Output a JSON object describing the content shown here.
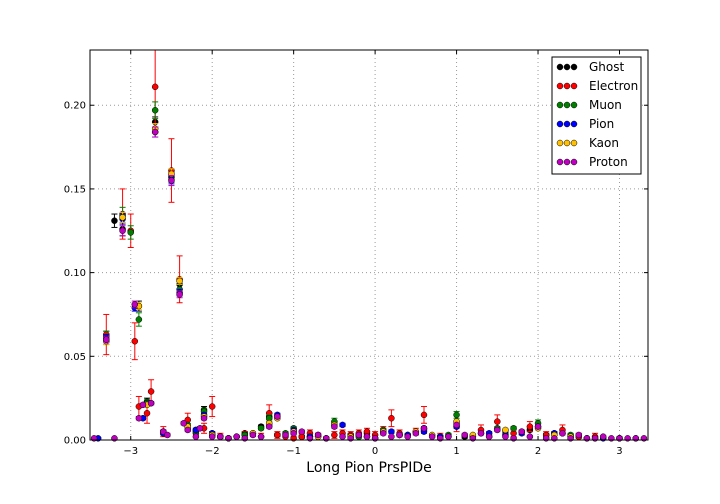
{
  "chart_data": {
    "type": "scatter",
    "title": "",
    "xlabel": "Long Pion PrsPIDe",
    "ylabel": "",
    "xlim": [
      -3.5,
      3.35
    ],
    "ylim": [
      0,
      0.233
    ],
    "xticks": [
      -3,
      -2,
      -1,
      0,
      1,
      2,
      3
    ],
    "xtick_labels": [
      "−3",
      "−2",
      "−1",
      "0",
      "1",
      "2",
      "3"
    ],
    "yticks": [
      0.0,
      0.05,
      0.1,
      0.15,
      0.2
    ],
    "ytick_labels": [
      "0.00",
      "0.05",
      "0.10",
      "0.15",
      "0.20"
    ],
    "grid": true,
    "legend_position": "top-right",
    "series": [
      {
        "name": "Ghost",
        "color": "#000000",
        "x": [
          -3.3,
          -3.2,
          -3.1,
          -2.9,
          -2.8,
          -2.7,
          -2.6,
          -2.5,
          -2.4,
          -2.3,
          -2.2,
          -2.1,
          -2.0,
          -1.9,
          -1.8,
          -1.6,
          -1.4,
          -1.3,
          -1.2,
          -1.0,
          -0.9,
          -0.7,
          -0.5,
          -0.3,
          -0.1,
          0.1,
          0.3,
          0.6,
          0.8,
          1.0,
          1.1,
          1.3,
          1.6,
          1.9,
          2.1,
          2.3,
          2.5,
          2.7,
          3.0
        ],
        "y": [
          0.062,
          0.131,
          0.126,
          0.08,
          0.023,
          0.19,
          0.005,
          0.157,
          0.093,
          0.008,
          0.006,
          0.018,
          0.003,
          0.002,
          0.001,
          0.004,
          0.008,
          0.014,
          0.003,
          0.006,
          0.002,
          0.003,
          0.01,
          0.003,
          0.004,
          0.005,
          0.003,
          0.007,
          0.002,
          0.01,
          0.002,
          0.004,
          0.005,
          0.006,
          0.003,
          0.004,
          0.002,
          0.001,
          0.001
        ],
        "err": [
          0.003,
          0.004,
          0.004,
          0.003,
          0.002,
          0.003,
          0.001,
          0.003,
          0.003,
          0.001,
          0.001,
          0.002,
          0.001,
          0.001,
          0.001,
          0.001,
          0.001,
          0.002,
          0.001,
          0.001,
          0.001,
          0.001,
          0.001,
          0.001,
          0.001,
          0.001,
          0.001,
          0.001,
          0.001,
          0.001,
          0.001,
          0.001,
          0.001,
          0.001,
          0.001,
          0.001,
          0.001,
          0.001,
          0.001
        ]
      },
      {
        "name": "Electron",
        "color": "#ff0000",
        "x": [
          -3.3,
          -3.1,
          -3.0,
          -2.95,
          -2.9,
          -2.8,
          -2.75,
          -2.7,
          -2.6,
          -2.5,
          -2.4,
          -2.3,
          -2.2,
          -2.1,
          -2.0,
          -1.9,
          -1.8,
          -1.6,
          -1.4,
          -1.3,
          -1.2,
          -1.1,
          -1.0,
          -0.9,
          -0.8,
          -0.7,
          -0.6,
          -0.5,
          -0.4,
          -0.3,
          -0.2,
          -0.1,
          0.0,
          0.1,
          0.2,
          0.3,
          0.5,
          0.6,
          0.8,
          1.0,
          1.3,
          1.5,
          1.7,
          1.9,
          2.1,
          2.3,
          2.5,
          2.7
        ],
        "y": [
          0.063,
          0.135,
          0.125,
          0.059,
          0.02,
          0.016,
          0.029,
          0.211,
          0.005,
          0.161,
          0.096,
          0.012,
          0.004,
          0.007,
          0.02,
          0.002,
          0.001,
          0.003,
          0.002,
          0.016,
          0.003,
          0.002,
          0.001,
          0.002,
          0.004,
          0.002,
          0.001,
          0.003,
          0.004,
          0.003,
          0.004,
          0.005,
          0.003,
          0.006,
          0.013,
          0.004,
          0.005,
          0.015,
          0.002,
          0.008,
          0.006,
          0.011,
          0.004,
          0.008,
          0.003,
          0.006,
          0.002,
          0.002
        ],
        "err": [
          0.012,
          0.015,
          0.01,
          0.011,
          0.006,
          0.006,
          0.007,
          0.025,
          0.003,
          0.019,
          0.014,
          0.004,
          0.002,
          0.003,
          0.006,
          0.002,
          0.001,
          0.002,
          0.002,
          0.005,
          0.002,
          0.002,
          0.001,
          0.002,
          0.002,
          0.002,
          0.001,
          0.002,
          0.002,
          0.002,
          0.002,
          0.002,
          0.002,
          0.002,
          0.005,
          0.002,
          0.002,
          0.005,
          0.002,
          0.003,
          0.003,
          0.004,
          0.002,
          0.003,
          0.002,
          0.003,
          0.002,
          0.002
        ]
      },
      {
        "name": "Muon",
        "color": "#008000",
        "x": [
          -3.3,
          -3.1,
          -3.0,
          -2.9,
          -2.8,
          -2.7,
          -2.6,
          -2.5,
          -2.4,
          -2.3,
          -2.2,
          -2.1,
          -2.0,
          -1.6,
          -1.4,
          -1.3,
          -1.1,
          -1.0,
          -0.8,
          -0.5,
          -0.2,
          0.1,
          0.4,
          0.6,
          0.9,
          1.0,
          1.2,
          1.5,
          1.7,
          2.0,
          2.2,
          2.4
        ],
        "y": [
          0.061,
          0.134,
          0.124,
          0.072,
          0.022,
          0.197,
          0.004,
          0.158,
          0.09,
          0.009,
          0.005,
          0.017,
          0.004,
          0.003,
          0.007,
          0.013,
          0.004,
          0.007,
          0.002,
          0.011,
          0.002,
          0.006,
          0.003,
          0.006,
          0.003,
          0.015,
          0.002,
          0.007,
          0.007,
          0.01,
          0.004,
          0.003
        ],
        "err": [
          0.004,
          0.005,
          0.004,
          0.004,
          0.002,
          0.005,
          0.001,
          0.004,
          0.003,
          0.001,
          0.001,
          0.002,
          0.001,
          0.001,
          0.001,
          0.002,
          0.001,
          0.001,
          0.001,
          0.002,
          0.001,
          0.001,
          0.001,
          0.001,
          0.001,
          0.002,
          0.001,
          0.001,
          0.001,
          0.002,
          0.001,
          0.001
        ]
      },
      {
        "name": "Pion",
        "color": "#0000ff",
        "x": [
          -3.4,
          -3.3,
          -3.1,
          -2.95,
          -2.85,
          -2.75,
          -2.7,
          -2.6,
          -2.5,
          -2.4,
          -2.3,
          -2.2,
          -2.1,
          -2.0,
          -1.9,
          -1.7,
          -1.5,
          -1.3,
          -1.2,
          -1.0,
          -0.8,
          -0.6,
          -0.4,
          -0.2,
          0.0,
          0.2,
          0.4,
          0.6,
          0.8,
          1.0,
          1.2,
          1.4,
          1.6,
          1.8,
          2.0,
          2.2,
          2.4,
          2.6,
          2.8,
          3.0,
          3.2
        ],
        "y": [
          0.001,
          0.061,
          0.132,
          0.079,
          0.013,
          0.022,
          0.184,
          0.004,
          0.156,
          0.088,
          0.007,
          0.006,
          0.015,
          0.004,
          0.002,
          0.002,
          0.004,
          0.009,
          0.015,
          0.006,
          0.002,
          0.001,
          0.009,
          0.003,
          0.001,
          0.005,
          0.003,
          0.005,
          0.002,
          0.008,
          0.002,
          0.004,
          0.003,
          0.004,
          0.008,
          0.004,
          0.002,
          0.001,
          0.001,
          0.001,
          0.001
        ],
        "err": [
          0.0005,
          0.002,
          0.003,
          0.002,
          0.001,
          0.001,
          0.003,
          0.001,
          0.003,
          0.002,
          0.001,
          0.001,
          0.001,
          0.001,
          0.0005,
          0.0005,
          0.001,
          0.001,
          0.001,
          0.001,
          0.0005,
          0.0005,
          0.001,
          0.0005,
          0.0005,
          0.001,
          0.0005,
          0.001,
          0.0005,
          0.001,
          0.0005,
          0.001,
          0.0005,
          0.001,
          0.001,
          0.001,
          0.0005,
          0.0005,
          0.0005,
          0.0005,
          0.0005
        ]
      },
      {
        "name": "Kaon",
        "color": "#ffc000",
        "x": [
          -3.3,
          -3.1,
          -2.9,
          -2.8,
          -2.7,
          -2.5,
          -2.4,
          -2.3,
          -2.1,
          -2.0,
          -1.7,
          -1.5,
          -1.3,
          -1.2,
          -1.0,
          -0.7,
          -0.5,
          -0.3,
          -0.1,
          0.1,
          0.3,
          0.5,
          0.7,
          0.9,
          1.0,
          1.2,
          1.4,
          1.6,
          1.8,
          2.0,
          2.2,
          2.4,
          2.6
        ],
        "y": [
          0.059,
          0.133,
          0.08,
          0.021,
          0.186,
          0.159,
          0.095,
          0.008,
          0.014,
          0.003,
          0.002,
          0.004,
          0.01,
          0.013,
          0.005,
          0.002,
          0.009,
          0.002,
          0.002,
          0.005,
          0.003,
          0.005,
          0.003,
          0.002,
          0.011,
          0.003,
          0.002,
          0.006,
          0.005,
          0.007,
          0.003,
          0.002,
          0.001
        ],
        "err": [
          0.002,
          0.003,
          0.002,
          0.001,
          0.003,
          0.003,
          0.002,
          0.001,
          0.001,
          0.001,
          0.0005,
          0.001,
          0.001,
          0.001,
          0.001,
          0.0005,
          0.001,
          0.0005,
          0.0005,
          0.001,
          0.0005,
          0.001,
          0.0005,
          0.0005,
          0.001,
          0.0005,
          0.0005,
          0.001,
          0.001,
          0.001,
          0.0005,
          0.0005,
          0.0005
        ]
      },
      {
        "name": "Proton",
        "color": "#c000c0",
        "x": [
          -3.45,
          -3.3,
          -3.2,
          -3.1,
          -2.95,
          -2.9,
          -2.85,
          -2.75,
          -2.7,
          -2.6,
          -2.55,
          -2.5,
          -2.4,
          -2.35,
          -2.3,
          -2.2,
          -2.15,
          -2.1,
          -2.0,
          -1.9,
          -1.8,
          -1.7,
          -1.6,
          -1.5,
          -1.4,
          -1.3,
          -1.2,
          -1.1,
          -1.0,
          -0.9,
          -0.8,
          -0.7,
          -0.6,
          -0.5,
          -0.4,
          -0.3,
          -0.2,
          -0.1,
          0.0,
          0.1,
          0.2,
          0.3,
          0.4,
          0.5,
          0.6,
          0.7,
          0.8,
          0.9,
          1.0,
          1.1,
          1.2,
          1.3,
          1.4,
          1.5,
          1.6,
          1.7,
          1.8,
          1.9,
          2.0,
          2.1,
          2.2,
          2.3,
          2.4,
          2.5,
          2.6,
          2.7,
          2.8,
          2.9,
          3.0,
          3.1,
          3.2,
          3.3
        ],
        "y": [
          0.001,
          0.06,
          0.001,
          0.125,
          0.081,
          0.013,
          0.021,
          0.022,
          0.184,
          0.005,
          0.003,
          0.155,
          0.087,
          0.01,
          0.006,
          0.002,
          0.007,
          0.013,
          0.002,
          0.002,
          0.001,
          0.002,
          0.001,
          0.003,
          0.002,
          0.008,
          0.014,
          0.003,
          0.004,
          0.005,
          0.001,
          0.003,
          0.001,
          0.008,
          0.002,
          0.001,
          0.003,
          0.002,
          0.001,
          0.004,
          0.002,
          0.003,
          0.002,
          0.004,
          0.007,
          0.002,
          0.001,
          0.002,
          0.009,
          0.003,
          0.001,
          0.004,
          0.002,
          0.006,
          0.002,
          0.001,
          0.005,
          0.002,
          0.008,
          0.001,
          0.001,
          0.004,
          0.001,
          0.003,
          0.001,
          0.001,
          0.002,
          0.001,
          0.001,
          0.001,
          0.001,
          0.001
        ],
        "err": [
          0.0005,
          0.002,
          0.0005,
          0.003,
          0.002,
          0.001,
          0.001,
          0.001,
          0.003,
          0.001,
          0.001,
          0.003,
          0.002,
          0.001,
          0.001,
          0.0005,
          0.001,
          0.001,
          0.0005,
          0.0005,
          0.0005,
          0.0005,
          0.0005,
          0.001,
          0.0005,
          0.001,
          0.001,
          0.001,
          0.001,
          0.001,
          0.0005,
          0.001,
          0.0005,
          0.001,
          0.0005,
          0.0005,
          0.001,
          0.0005,
          0.0005,
          0.001,
          0.0005,
          0.001,
          0.0005,
          0.001,
          0.001,
          0.0005,
          0.0005,
          0.0005,
          0.001,
          0.001,
          0.0005,
          0.001,
          0.0005,
          0.001,
          0.0005,
          0.0005,
          0.001,
          0.0005,
          0.001,
          0.0005,
          0.0005,
          0.001,
          0.0005,
          0.001,
          0.0005,
          0.0005,
          0.0005,
          0.0005,
          0.0005,
          0.0005,
          0.0005,
          0.0005
        ]
      }
    ]
  }
}
